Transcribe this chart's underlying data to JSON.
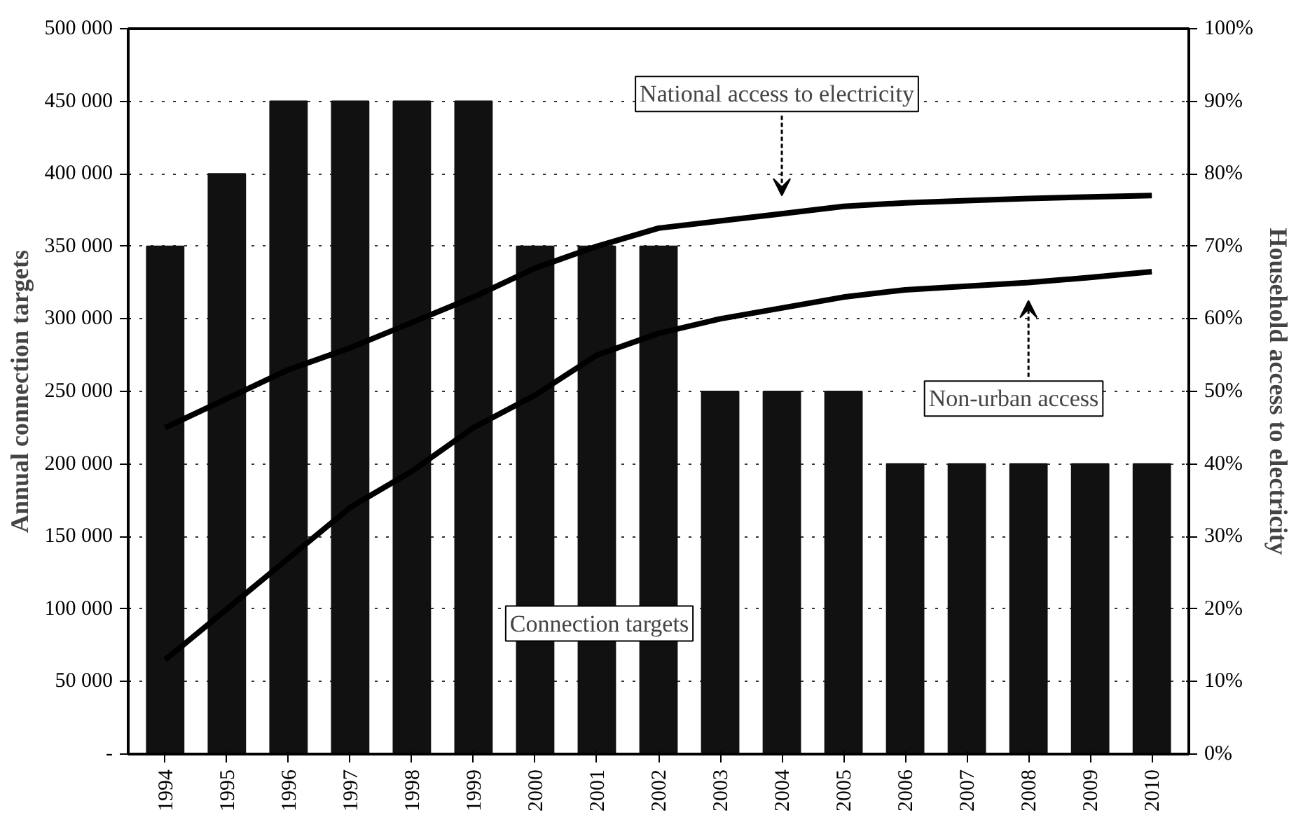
{
  "chart_data": {
    "type": "bar",
    "ylabel": "Annual connection targets",
    "y2label": "Household access to electricity",
    "categories": [
      "1994",
      "1995",
      "1996",
      "1997",
      "1998",
      "1999",
      "2000",
      "2001",
      "2002",
      "2003",
      "2004",
      "2005",
      "2006",
      "2007",
      "2008",
      "2009",
      "2010"
    ],
    "series": [
      {
        "name": "Connection targets",
        "color": "#111111",
        "values": [
          350000,
          400000,
          450000,
          450000,
          450000,
          450000,
          350000,
          350000,
          350000,
          250000,
          250000,
          250000,
          200000,
          200000,
          200000,
          200000,
          200000
        ]
      },
      {
        "name": "National access to electricity",
        "type": "line",
        "axis": "y2",
        "color": "#000000",
        "values": [
          45,
          49,
          53,
          56,
          59.5,
          63,
          67,
          70,
          72.5,
          73.5,
          74.5,
          75.5,
          76,
          76.3,
          76.6,
          76.8,
          77
        ]
      },
      {
        "name": "Non-urban access",
        "type": "line",
        "axis": "y2",
        "color": "#000000",
        "values": [
          13,
          20,
          27,
          34,
          39,
          45,
          49.5,
          55,
          58,
          60,
          61.5,
          63,
          64,
          64.5,
          65,
          65.7,
          66.5
        ]
      }
    ],
    "ylim": [
      0,
      500000
    ],
    "yticks": [
      {
        "value": 0,
        "label": "-"
      },
      {
        "value": 50000,
        "label": "50 000"
      },
      {
        "value": 100000,
        "label": "100 000"
      },
      {
        "value": 150000,
        "label": "150 000"
      },
      {
        "value": 200000,
        "label": "200 000"
      },
      {
        "value": 250000,
        "label": "250 000"
      },
      {
        "value": 300000,
        "label": "300 000"
      },
      {
        "value": 350000,
        "label": "350 000"
      },
      {
        "value": 400000,
        "label": "400 000"
      },
      {
        "value": 450000,
        "label": "450 000"
      },
      {
        "value": 500000,
        "label": "500 000"
      }
    ],
    "y2lim": [
      0,
      100
    ],
    "y2ticks": [
      {
        "value": 0,
        "label": "0%"
      },
      {
        "value": 10,
        "label": "10%"
      },
      {
        "value": 20,
        "label": "20%"
      },
      {
        "value": 30,
        "label": "30%"
      },
      {
        "value": 40,
        "label": "40%"
      },
      {
        "value": 50,
        "label": "50%"
      },
      {
        "value": 60,
        "label": "60%"
      },
      {
        "value": 70,
        "label": "70%"
      },
      {
        "value": 80,
        "label": "80%"
      },
      {
        "value": 90,
        "label": "90%"
      },
      {
        "value": 100,
        "label": "100%"
      }
    ],
    "grid": "y"
  }
}
